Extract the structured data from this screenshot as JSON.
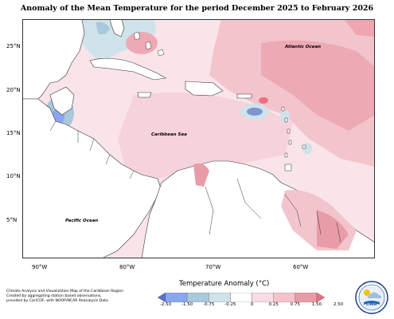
{
  "title": "Anomaly of the Mean Temperature for the period December 2025 to February 2026",
  "labels": {
    "atlantic": "Atlantic Ocean",
    "caribbean": "Caribbean Sea",
    "pacific": "Pacific Ocean"
  },
  "lat_ticks": [
    "25°N",
    "20°N",
    "15°N",
    "10°N",
    "5°N"
  ],
  "lon_ticks": [
    "90°W",
    "80°W",
    "70°W",
    "60°W"
  ],
  "colorbar": {
    "title": "Temperature Anomaly (°C)",
    "ticks": [
      "-2.50",
      "-1.50",
      "-0.75",
      "-0.25",
      "0",
      "0.25",
      "0.75",
      "1.50",
      "2.50"
    ],
    "colors": [
      "#5870c8",
      "#8aa6f0",
      "#a9c9dc",
      "#cfe3ea",
      "#ffffff",
      "#f8dde4",
      "#f4c3cb",
      "#e89ca8",
      "#ef6e80"
    ]
  },
  "footer": {
    "line1": "Climate Analysis and Visualization Map of the Caribbean Region",
    "line2": "Created by aggregating station based observations,",
    "line3": "provided by CariCOF, with NOOP/NCAR Reanalysis Data"
  },
  "logo": {
    "text": "CIMH",
    "icon": "cimh-logo-icon"
  }
}
